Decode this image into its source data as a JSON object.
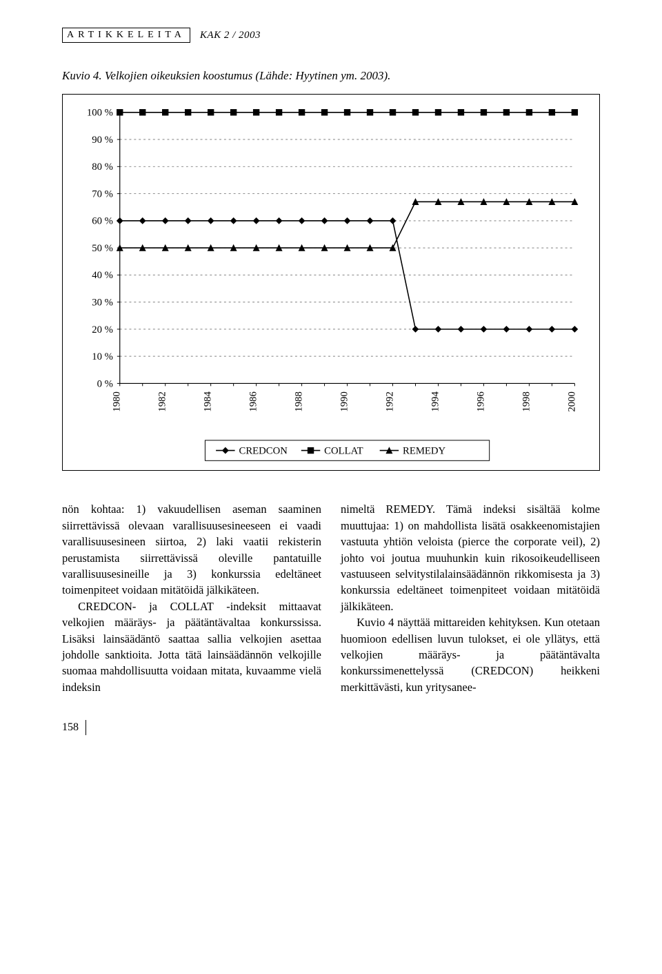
{
  "header": {
    "section_label": "ARTIKKELEITA",
    "issue": "KAK 2 / 2003"
  },
  "figure": {
    "caption": "Kuvio 4. Velkojien oikeuksien koostumus (Lähde: Hyytinen ym. 2003)."
  },
  "chart": {
    "type": "line",
    "background_color": "#ffffff",
    "border_color": "#000000",
    "grid_color": "#808080",
    "grid_dash": "3,4",
    "axis_color": "#000000",
    "tick_font_size": 15,
    "legend_font_size": 15,
    "ylim": [
      0,
      100
    ],
    "ytick_step": 10,
    "yticks": [
      "0 %",
      "10 %",
      "20 %",
      "30 %",
      "40 %",
      "50 %",
      "60 %",
      "70 %",
      "80 %",
      "90 %",
      "100 %"
    ],
    "x_labels": [
      "1980",
      "1982",
      "1984",
      "1986",
      "1988",
      "1990",
      "1992",
      "1994",
      "1996",
      "1998",
      "2000"
    ],
    "x_count": 21,
    "line_width": 1.6,
    "marker_size": 6,
    "series": [
      {
        "name": "CREDCON",
        "marker": "diamond",
        "color": "#000000",
        "values": [
          60,
          60,
          60,
          60,
          60,
          60,
          60,
          60,
          60,
          60,
          60,
          60,
          60,
          20,
          20,
          20,
          20,
          20,
          20,
          20,
          20
        ]
      },
      {
        "name": "COLLAT",
        "marker": "square",
        "color": "#000000",
        "values": [
          100,
          100,
          100,
          100,
          100,
          100,
          100,
          100,
          100,
          100,
          100,
          100,
          100,
          100,
          100,
          100,
          100,
          100,
          100,
          100,
          100
        ]
      },
      {
        "name": "REMEDY",
        "marker": "triangle",
        "color": "#000000",
        "values": [
          50,
          50,
          50,
          50,
          50,
          50,
          50,
          50,
          50,
          50,
          50,
          50,
          50,
          67,
          67,
          67,
          67,
          67,
          67,
          67,
          67
        ]
      }
    ],
    "legend": [
      "CREDCON",
      "COLLAT",
      "REMEDY"
    ]
  },
  "body": {
    "col1": {
      "p1": "nön kohtaa: 1) vakuudellisen aseman saaminen siirrettävissä olevaan varallisuusesineeseen ei vaadi varallisuusesineen siirtoa, 2) laki vaatii rekisterin perustamista siirrettävissä oleville pantatuille varallisuusesineille ja 3) konkurssia edeltäneet toimenpiteet voidaan mitätöidä jälkikäteen.",
      "p2": "CREDCON- ja COLLAT -indeksit mittaavat velkojien määräys- ja päätäntävaltaa konkurssissa. Lisäksi lainsäädäntö saattaa sallia velkojien asettaa johdolle sanktioita. Jotta tätä lainsäädännön velkojille suomaa mahdollisuutta voidaan mitata, kuvaamme vielä indeksin"
    },
    "col2": {
      "p1": "nimeltä REMEDY. Tämä indeksi sisältää kolme muuttujaa: 1) on mahdollista lisätä osakkeenomistajien vastuuta yhtiön veloista (pierce the corporate veil), 2) johto voi joutua muuhunkin kuin rikosoikeudelliseen vastuuseen selvitystilalainsäädännön rikkomisesta ja 3) konkurssia edeltäneet toimenpiteet voidaan mitätöidä jälkikäteen.",
      "p2": "Kuvio 4 näyttää mittareiden kehityksen. Kun otetaan huomioon edellisen luvun tulokset, ei ole yllätys, että velkojien määräys- ja päätäntävalta konkurssimenettelyssä (CREDCON) heikkeni merkittävästi, kun yritysanee-"
    }
  },
  "page_number": "158"
}
